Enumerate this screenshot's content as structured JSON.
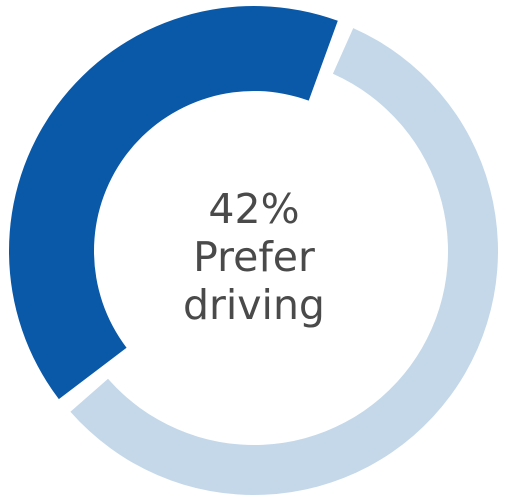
{
  "chart_data": {
    "type": "pie",
    "style": "donut",
    "slices": [
      {
        "label": "Prefer driving",
        "value": 42,
        "color": "#0a58a8"
      },
      {
        "value": 58,
        "color": "#c4d8ea"
      }
    ],
    "center_label": {
      "percent": "42%",
      "line1": "Prefer",
      "line2": "driving"
    }
  }
}
